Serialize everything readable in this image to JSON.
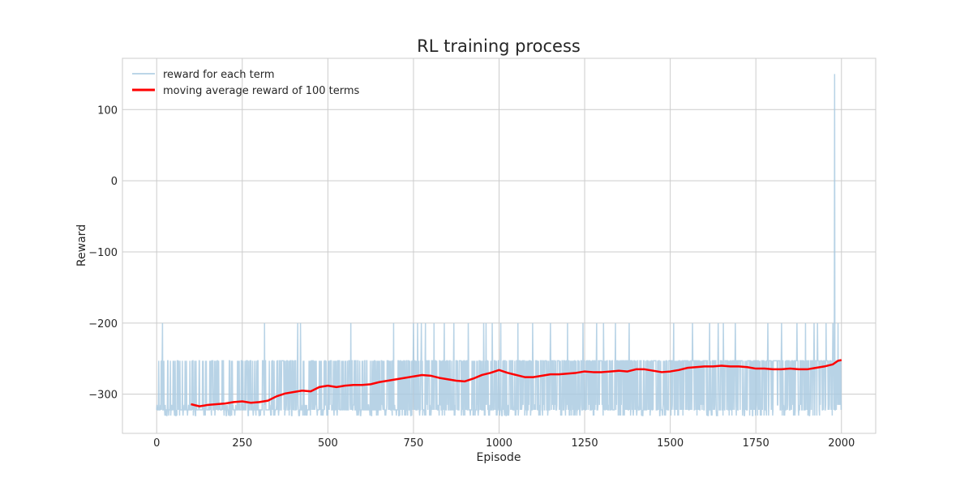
{
  "chart_data": {
    "type": "line",
    "title": "RL training process",
    "xlabel": "Episode",
    "ylabel": "Reward",
    "xlim": [
      -100,
      2100
    ],
    "ylim": [
      -355,
      172
    ],
    "xticks": [
      0,
      250,
      500,
      750,
      1000,
      1250,
      1500,
      1750,
      2000
    ],
    "xtick_labels": [
      "0",
      "250",
      "500",
      "750",
      "1000",
      "1250",
      "1500",
      "1750",
      "2000"
    ],
    "yticks": [
      -300,
      -200,
      -100,
      0,
      100
    ],
    "ytick_labels": [
      "−300",
      "−200",
      "−100",
      "0",
      "100"
    ],
    "grid": true,
    "legend_position": "top-left",
    "series": [
      {
        "name": "reward for each term",
        "color": "#a6c8e0",
        "episodes": 2000,
        "levels": [
          -330,
          -322,
          -315,
          -253,
          -200,
          150
        ],
        "spikes": [
          {
            "x": 17,
            "y": -200
          },
          {
            "x": 315,
            "y": -200
          },
          {
            "x": 412,
            "y": -200
          },
          {
            "x": 420,
            "y": -200
          },
          {
            "x": 567,
            "y": -200
          },
          {
            "x": 692,
            "y": -200
          },
          {
            "x": 750,
            "y": -200
          },
          {
            "x": 762,
            "y": -200
          },
          {
            "x": 773,
            "y": -200
          },
          {
            "x": 785,
            "y": -200
          },
          {
            "x": 810,
            "y": -200
          },
          {
            "x": 840,
            "y": -200
          },
          {
            "x": 868,
            "y": -200
          },
          {
            "x": 910,
            "y": -200
          },
          {
            "x": 955,
            "y": -200
          },
          {
            "x": 962,
            "y": -200
          },
          {
            "x": 980,
            "y": -200
          },
          {
            "x": 1005,
            "y": -200
          },
          {
            "x": 1055,
            "y": -200
          },
          {
            "x": 1098,
            "y": -200
          },
          {
            "x": 1150,
            "y": -200
          },
          {
            "x": 1200,
            "y": -200
          },
          {
            "x": 1245,
            "y": -200
          },
          {
            "x": 1285,
            "y": -200
          },
          {
            "x": 1305,
            "y": -200
          },
          {
            "x": 1340,
            "y": -200
          },
          {
            "x": 1380,
            "y": -200
          },
          {
            "x": 1510,
            "y": -200
          },
          {
            "x": 1565,
            "y": -200
          },
          {
            "x": 1615,
            "y": -200
          },
          {
            "x": 1640,
            "y": -200
          },
          {
            "x": 1655,
            "y": -200
          },
          {
            "x": 1690,
            "y": -200
          },
          {
            "x": 1785,
            "y": -200
          },
          {
            "x": 1825,
            "y": -200
          },
          {
            "x": 1870,
            "y": -200
          },
          {
            "x": 1895,
            "y": -200
          },
          {
            "x": 1920,
            "y": -200
          },
          {
            "x": 1930,
            "y": -200
          },
          {
            "x": 1955,
            "y": -200
          },
          {
            "x": 1975,
            "y": -200
          },
          {
            "x": 1980,
            "y": 150
          },
          {
            "x": 1990,
            "y": -200
          }
        ]
      },
      {
        "name": "moving average reward of 100 terms",
        "color": "#ff0000",
        "x": [
          100,
          125,
          150,
          175,
          200,
          225,
          250,
          275,
          300,
          325,
          350,
          375,
          400,
          425,
          450,
          475,
          500,
          525,
          550,
          575,
          600,
          625,
          650,
          675,
          700,
          725,
          750,
          775,
          800,
          825,
          850,
          875,
          900,
          925,
          950,
          975,
          1000,
          1025,
          1050,
          1075,
          1100,
          1125,
          1150,
          1175,
          1200,
          1225,
          1250,
          1275,
          1300,
          1325,
          1350,
          1375,
          1400,
          1425,
          1450,
          1475,
          1500,
          1525,
          1550,
          1575,
          1600,
          1625,
          1650,
          1675,
          1700,
          1725,
          1750,
          1775,
          1800,
          1825,
          1850,
          1875,
          1900,
          1925,
          1950,
          1975,
          1990,
          2000
        ],
        "y": [
          -314,
          -317,
          -315,
          -314,
          -313,
          -311,
          -310,
          -312,
          -311,
          -309,
          -303,
          -299,
          -297,
          -295,
          -296,
          -290,
          -288,
          -290,
          -288,
          -287,
          -287,
          -286,
          -283,
          -281,
          -279,
          -277,
          -275,
          -273,
          -274,
          -277,
          -279,
          -281,
          -282,
          -278,
          -273,
          -270,
          -266,
          -270,
          -273,
          -276,
          -276,
          -274,
          -272,
          -272,
          -271,
          -270,
          -268,
          -269,
          -269,
          -268,
          -267,
          -268,
          -265,
          -265,
          -267,
          -269,
          -268,
          -266,
          -263,
          -262,
          -261,
          -261,
          -260,
          -261,
          -261,
          -262,
          -264,
          -264,
          -265,
          -265,
          -264,
          -265,
          -265,
          -263,
          -261,
          -258,
          -253,
          -252
        ]
      }
    ]
  }
}
